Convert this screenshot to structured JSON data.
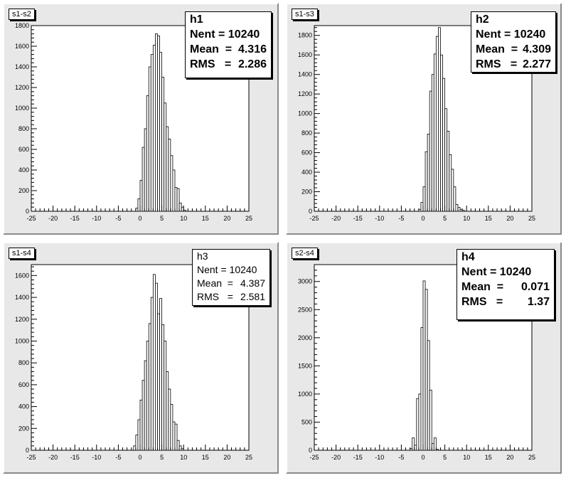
{
  "chart_data": [
    {
      "type": "bar",
      "title": "s1-s2",
      "xlim": [
        -25,
        25
      ],
      "ylim": [
        0,
        1800
      ],
      "x_ticks": [
        -25,
        -20,
        -15,
        -10,
        -5,
        0,
        5,
        10,
        15,
        20,
        25
      ],
      "y_ticks": [
        0,
        200,
        400,
        600,
        800,
        1000,
        1200,
        1400,
        1600,
        1800
      ],
      "bin_width": 0.5,
      "bins": [
        {
          "x": -1.0,
          "value": 30
        },
        {
          "x": -0.5,
          "value": 120
        },
        {
          "x": 0.0,
          "value": 300
        },
        {
          "x": 0.5,
          "value": 620
        },
        {
          "x": 1.0,
          "value": 800
        },
        {
          "x": 1.5,
          "value": 1120
        },
        {
          "x": 2.0,
          "value": 1400
        },
        {
          "x": 2.5,
          "value": 1520
        },
        {
          "x": 3.0,
          "value": 1610
        },
        {
          "x": 3.5,
          "value": 1720
        },
        {
          "x": 4.0,
          "value": 1700
        },
        {
          "x": 4.5,
          "value": 1540
        },
        {
          "x": 5.0,
          "value": 1300
        },
        {
          "x": 5.5,
          "value": 1050
        },
        {
          "x": 6.0,
          "value": 820
        },
        {
          "x": 6.5,
          "value": 700
        },
        {
          "x": 7.0,
          "value": 540
        },
        {
          "x": 7.5,
          "value": 400
        },
        {
          "x": 8.0,
          "value": 230
        },
        {
          "x": 8.5,
          "value": 220
        },
        {
          "x": 9.0,
          "value": 80
        },
        {
          "x": 9.5,
          "value": 40
        },
        {
          "x": 10.0,
          "value": 10
        }
      ],
      "stats": {
        "name": "h1",
        "entries": "10240",
        "mean": "4.316",
        "rms": "2.286"
      },
      "stats_labels": {
        "entries": "Nent =",
        "mean": "Mean  =",
        "rms": "RMS   ="
      }
    },
    {
      "type": "bar",
      "title": "s1-s3",
      "xlim": [
        -25,
        25
      ],
      "ylim": [
        0,
        1900
      ],
      "x_ticks": [
        -25,
        -20,
        -15,
        -10,
        -5,
        0,
        5,
        10,
        15,
        20,
        25
      ],
      "y_ticks": [
        0,
        200,
        400,
        600,
        800,
        1000,
        1200,
        1400,
        1600,
        1800
      ],
      "bin_width": 0.5,
      "bins": [
        {
          "x": -1.0,
          "value": 20
        },
        {
          "x": -0.5,
          "value": 90
        },
        {
          "x": 0.0,
          "value": 250
        },
        {
          "x": 0.5,
          "value": 610
        },
        {
          "x": 1.0,
          "value": 790
        },
        {
          "x": 1.5,
          "value": 1230
        },
        {
          "x": 2.0,
          "value": 1400
        },
        {
          "x": 2.5,
          "value": 1610
        },
        {
          "x": 3.0,
          "value": 1790
        },
        {
          "x": 3.5,
          "value": 1880
        },
        {
          "x": 4.0,
          "value": 1600
        },
        {
          "x": 4.5,
          "value": 1360
        },
        {
          "x": 5.0,
          "value": 1050
        },
        {
          "x": 5.5,
          "value": 820
        },
        {
          "x": 6.0,
          "value": 580
        },
        {
          "x": 6.5,
          "value": 430
        },
        {
          "x": 7.0,
          "value": 250
        },
        {
          "x": 7.5,
          "value": 70
        },
        {
          "x": 8.0,
          "value": 40
        },
        {
          "x": 8.5,
          "value": 20
        },
        {
          "x": 9.0,
          "value": 10
        }
      ],
      "stats": {
        "name": "h2",
        "entries": "10240",
        "mean": "4.309",
        "rms": "2.277"
      },
      "stats_labels": {
        "entries": "Nent =",
        "mean": "Mean  =",
        "rms": "RMS   ="
      }
    },
    {
      "type": "bar",
      "title": "s1-s4",
      "xlim": [
        -25,
        25
      ],
      "ylim": [
        0,
        1700
      ],
      "x_ticks": [
        -25,
        -20,
        -15,
        -10,
        -5,
        0,
        5,
        10,
        15,
        20,
        25
      ],
      "y_ticks": [
        0,
        200,
        400,
        600,
        800,
        1000,
        1200,
        1400,
        1600
      ],
      "bin_width": 0.5,
      "bins": [
        {
          "x": -1.5,
          "value": 40
        },
        {
          "x": -1.0,
          "value": 140
        },
        {
          "x": -0.5,
          "value": 280
        },
        {
          "x": 0.0,
          "value": 460
        },
        {
          "x": 0.5,
          "value": 640
        },
        {
          "x": 1.0,
          "value": 820
        },
        {
          "x": 1.5,
          "value": 1000
        },
        {
          "x": 2.0,
          "value": 1160
        },
        {
          "x": 2.5,
          "value": 1400
        },
        {
          "x": 3.0,
          "value": 1610
        },
        {
          "x": 3.5,
          "value": 1530
        },
        {
          "x": 4.0,
          "value": 1250
        },
        {
          "x": 4.5,
          "value": 1390
        },
        {
          "x": 5.0,
          "value": 1150
        },
        {
          "x": 5.5,
          "value": 1000
        },
        {
          "x": 6.0,
          "value": 720
        },
        {
          "x": 6.5,
          "value": 560
        },
        {
          "x": 7.0,
          "value": 420
        },
        {
          "x": 7.5,
          "value": 260
        },
        {
          "x": 8.0,
          "value": 240
        },
        {
          "x": 8.5,
          "value": 90
        },
        {
          "x": 9.0,
          "value": 40
        },
        {
          "x": 9.5,
          "value": 15
        }
      ],
      "stats": {
        "name": "h3",
        "entries": "10240",
        "mean": "4.387",
        "rms": "2.581"
      },
      "stats_labels": {
        "entries": "Nent =",
        "mean": "Mean  =",
        "rms": "RMS   ="
      }
    },
    {
      "type": "bar",
      "title": "s2-s4",
      "xlim": [
        -25,
        25
      ],
      "ylim": [
        0,
        3300
      ],
      "x_ticks": [
        -25,
        -20,
        -15,
        -10,
        -5,
        0,
        5,
        10,
        15,
        20,
        25
      ],
      "y_ticks": [
        0,
        500,
        1000,
        1500,
        2000,
        2500,
        3000
      ],
      "bin_width": 0.5,
      "bins": [
        {
          "x": -3.0,
          "value": 30
        },
        {
          "x": -2.5,
          "value": 220
        },
        {
          "x": -2.0,
          "value": 90
        },
        {
          "x": -1.5,
          "value": 920
        },
        {
          "x": -1.0,
          "value": 1000
        },
        {
          "x": -0.5,
          "value": 2180
        },
        {
          "x": 0.0,
          "value": 3010
        },
        {
          "x": 0.5,
          "value": 2860
        },
        {
          "x": 1.0,
          "value": 1950
        },
        {
          "x": 1.5,
          "value": 1070
        },
        {
          "x": 2.0,
          "value": 120
        },
        {
          "x": 2.5,
          "value": 220
        },
        {
          "x": 3.0,
          "value": 20
        }
      ],
      "stats": {
        "name": "h4",
        "entries": "10240",
        "mean": "0.071",
        "rms": "1.37"
      },
      "stats_labels": {
        "entries": "Nent =",
        "mean": "Mean  =",
        "rms": "RMS   ="
      }
    }
  ]
}
